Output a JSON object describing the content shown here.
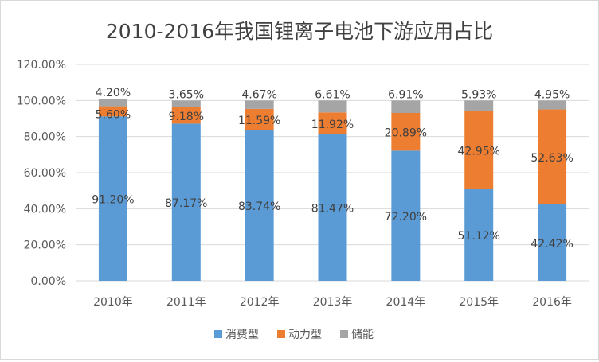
{
  "chart_data": {
    "type": "bar",
    "stacked": true,
    "title": "2010-2016年我国锂离子电池下游应用占比",
    "xlabel": "",
    "ylabel": "",
    "categories": [
      "2010年",
      "2011年",
      "2012年",
      "2013年",
      "2014年",
      "2015年",
      "2016年"
    ],
    "series": [
      {
        "name": "消费型",
        "color": "#5b9bd5",
        "values": [
          91.2,
          87.17,
          83.74,
          81.47,
          72.2,
          51.12,
          42.42
        ]
      },
      {
        "name": "动力型",
        "color": "#ed7d31",
        "values": [
          5.6,
          9.18,
          11.59,
          11.92,
          20.89,
          42.95,
          52.63
        ]
      },
      {
        "name": "储能",
        "color": "#a5a5a5",
        "values": [
          4.2,
          3.65,
          4.67,
          6.61,
          6.91,
          5.93,
          4.95
        ]
      }
    ],
    "data_labels": [
      [
        "91.20%",
        "87.17%",
        "83.74%",
        "81.47%",
        "72.20%",
        "51.12%",
        "42.42%"
      ],
      [
        "5.60%",
        "9.18%",
        "11.59%",
        "11.92%",
        "20.89%",
        "42.95%",
        "52.63%"
      ],
      [
        "4.20%",
        "3.65%",
        "4.67%",
        "6.61%",
        "6.91%",
        "5.93%",
        "4.95%"
      ]
    ],
    "ylim": [
      0,
      120
    ],
    "yticks": [
      "0.00%",
      "20.00%",
      "40.00%",
      "60.00%",
      "80.00%",
      "100.00%",
      "120.00%"
    ],
    "grid": true,
    "legend_position": "bottom"
  }
}
